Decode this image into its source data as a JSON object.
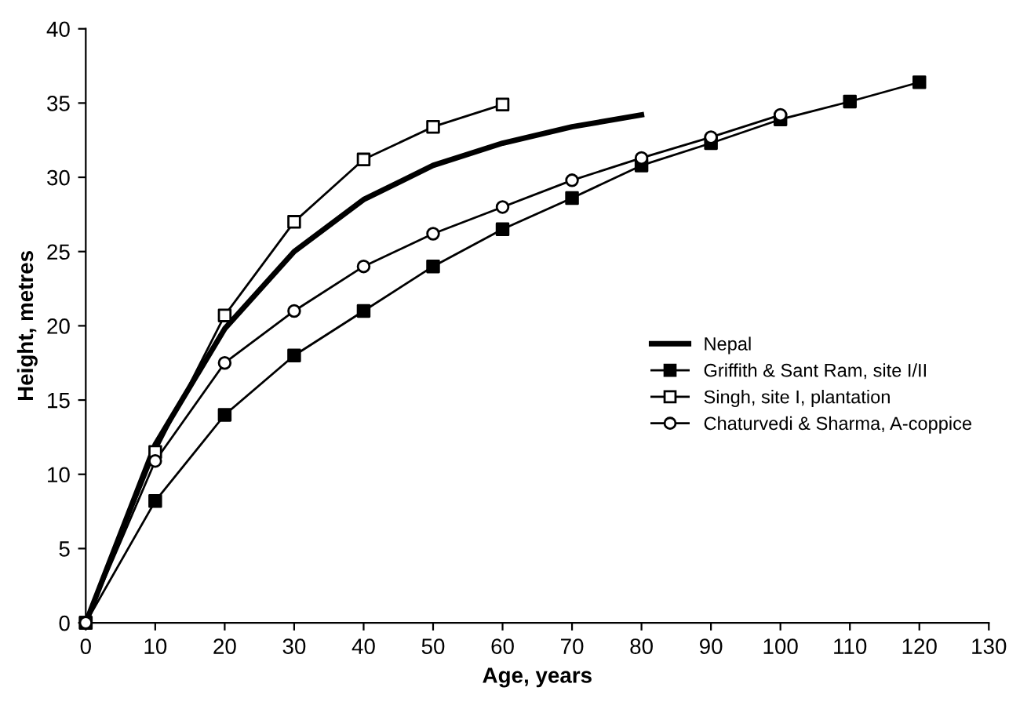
{
  "chart_data": {
    "type": "line",
    "xlabel": "Age, years",
    "ylabel": "Height, metres",
    "xlim": [
      0,
      130
    ],
    "ylim": [
      0,
      40
    ],
    "xticks": [
      0,
      10,
      20,
      30,
      40,
      50,
      60,
      70,
      80,
      90,
      100,
      110,
      120,
      130
    ],
    "yticks": [
      0,
      5,
      10,
      15,
      20,
      25,
      30,
      35,
      40
    ],
    "grid": false,
    "legend": "center right",
    "series": [
      {
        "name": "Nepal",
        "color": "#000000",
        "marker": "none",
        "x": [
          0,
          10,
          20,
          30,
          40,
          50,
          60,
          70,
          80
        ],
        "values": [
          0,
          12,
          19.8,
          25,
          28.5,
          30.8,
          32.3,
          33.4,
          34.2
        ]
      },
      {
        "name": "Griffith & Sant Ram, site I/II",
        "color": "#000000",
        "marker": "square",
        "x": [
          0,
          10,
          20,
          30,
          40,
          50,
          60,
          70,
          80,
          90,
          100,
          110,
          120
        ],
        "values": [
          0,
          8.2,
          14,
          18,
          21,
          24,
          26.5,
          28.6,
          30.8,
          32.3,
          33.9,
          35.1,
          36.4
        ]
      },
      {
        "name": "Singh, site I, plantation",
        "color": "#000000",
        "marker": "square",
        "colors": [
          "#ffffff",
          "#ffffff",
          "#ffffff",
          "#ffffff",
          "#ffffff",
          "#ffffff",
          "#ffffff"
        ],
        "x": [
          0,
          10,
          20,
          30,
          40,
          50,
          60
        ],
        "values": [
          0,
          11.5,
          20.7,
          27,
          31.2,
          33.4,
          34.9
        ]
      },
      {
        "name": "Chaturvedi & Sharma, A-coppice",
        "color": "#000000",
        "marker": "circle",
        "colors": [
          "#ffffff",
          "#ffffff",
          "#ffffff",
          "#ffffff",
          "#ffffff",
          "#ffffff",
          "#ffffff",
          "#ffffff",
          "#ffffff",
          "#ffffff",
          "#ffffff"
        ],
        "x": [
          0,
          10,
          20,
          30,
          40,
          50,
          60,
          70,
          80,
          90,
          100
        ],
        "values": [
          0,
          10.9,
          17.5,
          21,
          24,
          26.2,
          28,
          29.8,
          31.3,
          32.7,
          34.2
        ]
      }
    ]
  }
}
